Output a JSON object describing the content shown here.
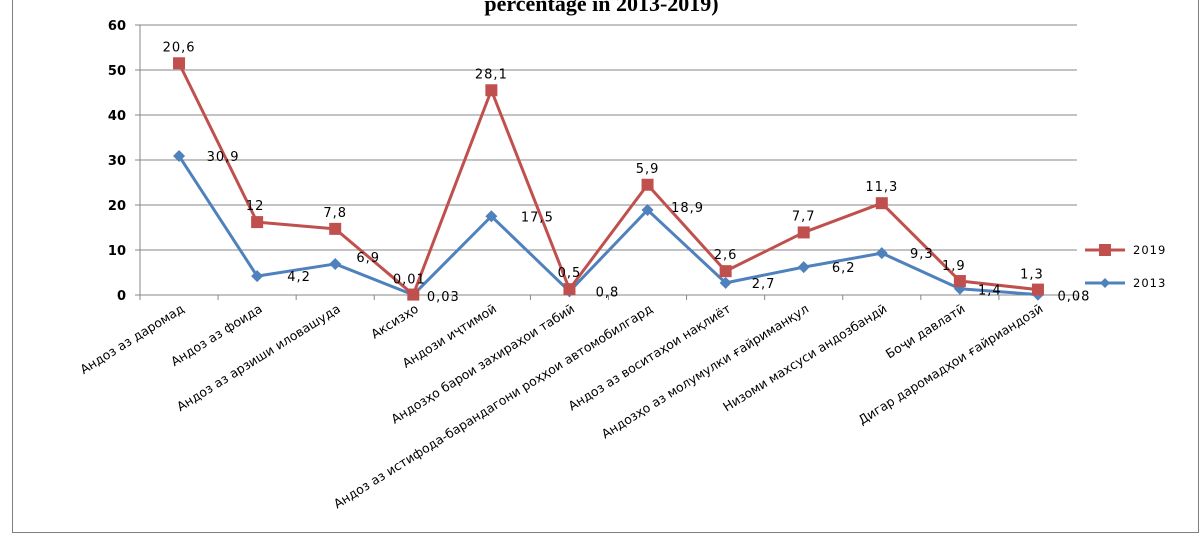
{
  "chart_data": {
    "type": "line",
    "title": "percentage in 2013-2019)",
    "categories": [
      "Андоз аз даромад",
      "Андоз аз фоида",
      "Андоз аз арзиши иловашуда",
      "Аксизҳо",
      "Андози иҷтимоӣ",
      "Андозҳо барои захираҳои табиӣ",
      "Андоз аз истифода-барандагони роҳҳои автомобилгард",
      "Андоз аз воситаҳои нақлиёт",
      "Андозҳо аз молумулки ғайриманқул",
      "Низоми махсуси андозбандӣ",
      "Боҷи давлатӣ",
      "Дигар даромадҳои ғайриандозӣ"
    ],
    "ylim": [
      0,
      60
    ],
    "yticks": [
      0,
      10,
      20,
      30,
      40,
      50,
      60
    ],
    "grid": true,
    "legend_position": "right",
    "series": [
      {
        "name": "2019",
        "color": "#c0504d",
        "values": [
          51.5,
          16.2,
          14.7,
          0.1,
          45.5,
          1.3,
          24.5,
          5.3,
          13.9,
          20.4,
          3.1,
          1.2
        ],
        "labels": [
          "20,6",
          "12",
          "7,8",
          "0,01",
          "28,1",
          "0,5",
          "5,9",
          "2,6",
          "7,7",
          "11,3",
          "1,9",
          "1,3"
        ]
      },
      {
        "name": "2013",
        "color": "#4f81bd",
        "values": [
          30.9,
          4.2,
          6.9,
          0.03,
          17.5,
          0.8,
          18.9,
          2.7,
          6.2,
          9.3,
          1.4,
          0.08
        ],
        "labels": [
          "30,9",
          "4,2",
          "6,9",
          "0,03",
          "17,5",
          "0,8",
          "18,9",
          "2,7",
          "6,2",
          "9,3",
          "1,4",
          "0,08"
        ]
      }
    ]
  }
}
